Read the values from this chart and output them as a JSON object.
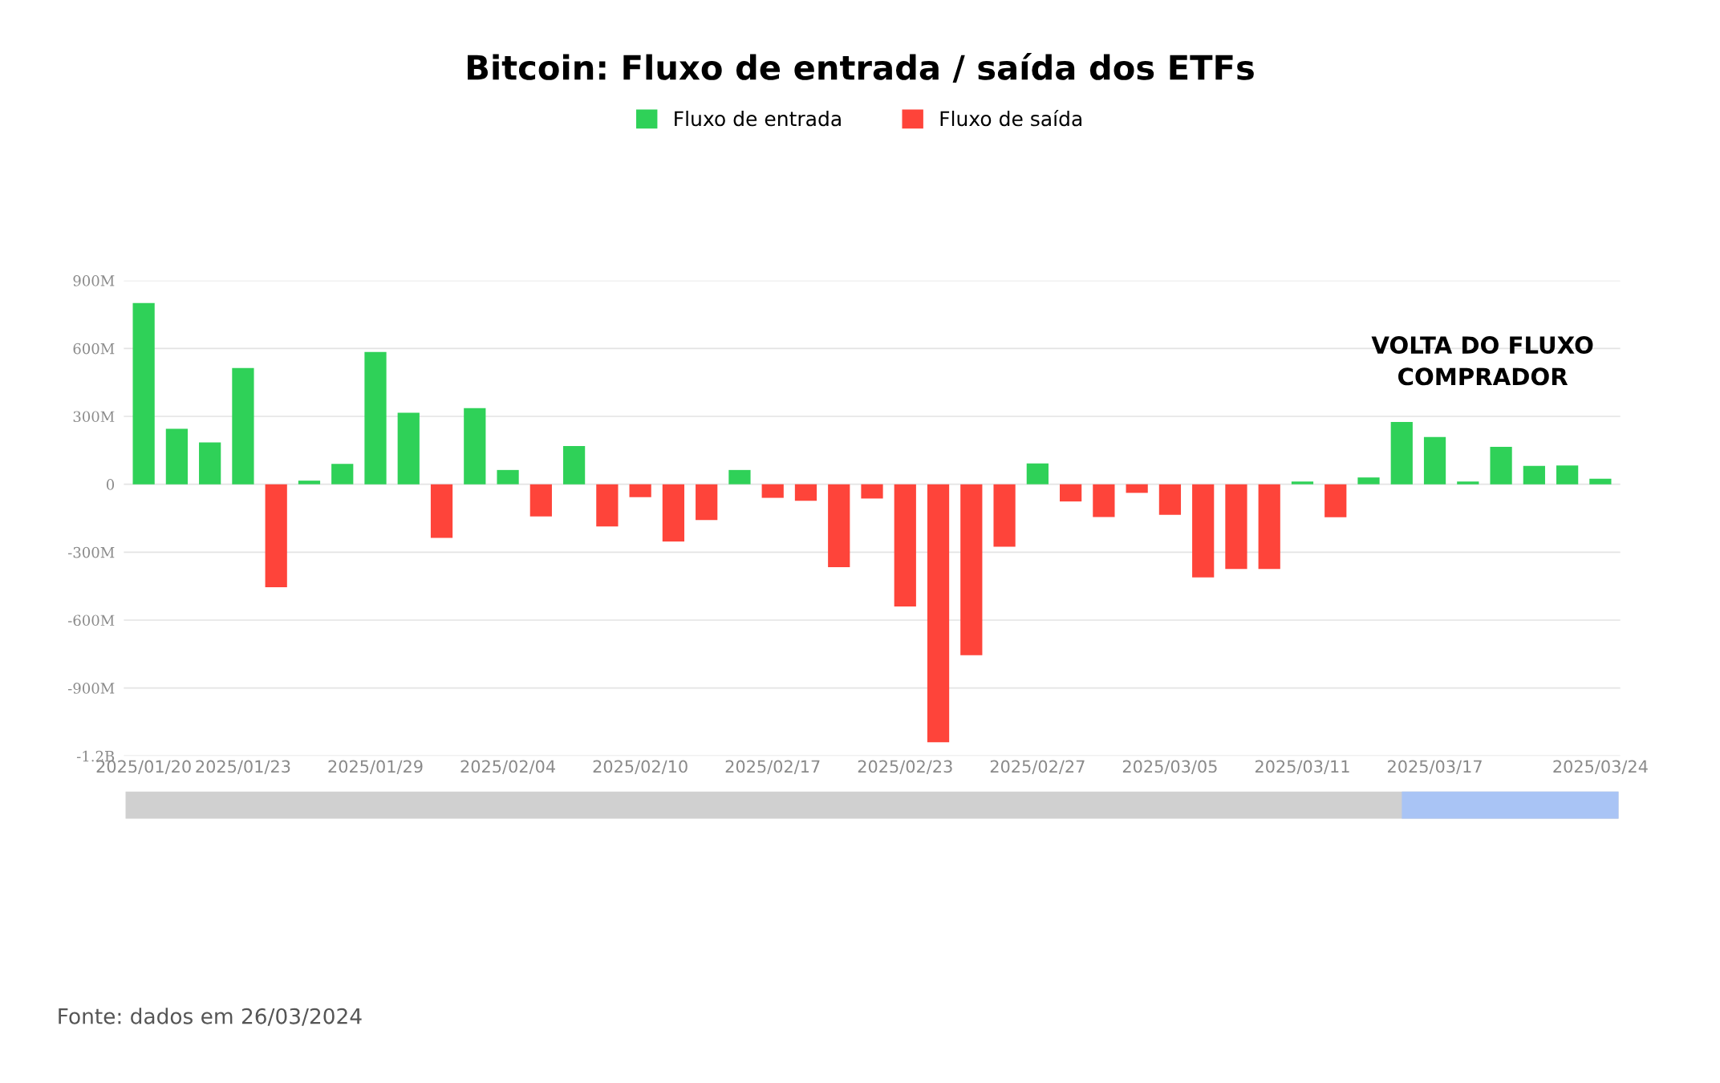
{
  "chart_data": {
    "type": "bar",
    "title": "Bitcoin: Fluxo de entrada / saída dos ETFs",
    "categories": [
      "2025/01/20",
      null,
      null,
      "2025/01/23",
      null,
      null,
      null,
      "2025/01/29",
      null,
      null,
      null,
      "2025/02/04",
      null,
      null,
      null,
      "2025/02/10",
      null,
      null,
      null,
      "2025/02/17",
      null,
      null,
      null,
      "2025/02/23",
      null,
      null,
      null,
      "2025/02/27",
      null,
      null,
      null,
      "2025/03/05",
      null,
      null,
      null,
      "2025/03/11",
      null,
      null,
      null,
      "2025/03/17",
      null,
      null,
      null,
      null,
      "2025/03/24"
    ],
    "series": [
      {
        "name": "Fluxo de entrada",
        "color": "#2fd158",
        "values": [
          800000000,
          245000000,
          185000000,
          513000000,
          null,
          16000000,
          90000000,
          584000000,
          316000000,
          null,
          336000000,
          63000000,
          null,
          169000000,
          null,
          null,
          null,
          null,
          63000000,
          null,
          null,
          null,
          null,
          null,
          null,
          null,
          null,
          92000000,
          null,
          null,
          null,
          null,
          null,
          null,
          null,
          12000000,
          null,
          30000000,
          275000000,
          209000000,
          12000000,
          165000000,
          81000000,
          83000000,
          24000000
        ]
      },
      {
        "name": "Fluxo de saída",
        "color": "#fe443a",
        "values": [
          null,
          null,
          null,
          null,
          -455000000,
          null,
          null,
          null,
          null,
          -237000000,
          null,
          null,
          -142000000,
          null,
          -186000000,
          -57000000,
          -253000000,
          -158000000,
          null,
          -60000000,
          -73000000,
          -366000000,
          -63000000,
          -540000000,
          -1140000000,
          -755000000,
          -276000000,
          null,
          -76000000,
          -145000000,
          -38000000,
          -135000000,
          -411000000,
          -374000000,
          -374000000,
          null,
          -146000000,
          null,
          null,
          null,
          null,
          null,
          null,
          null,
          null
        ]
      }
    ],
    "ylim": [
      -1200000000,
      900000000
    ],
    "yticks": [
      {
        "value": -1200000000,
        "label": "-1.2B"
      },
      {
        "value": -900000000,
        "label": "-900M"
      },
      {
        "value": -600000000,
        "label": "-600M"
      },
      {
        "value": -300000000,
        "label": "-300M"
      },
      0,
      {
        "value": 300000000,
        "label": "300M"
      },
      {
        "value": 600000000,
        "label": "600M"
      },
      {
        "value": 900000000,
        "label": "900M"
      }
    ],
    "grid": "y",
    "legend": "top",
    "annotations": [
      "VOLTA DO FLUXO\nCOMPRADOR",
      "Fonte: dados em 26/03/2024"
    ]
  }
}
